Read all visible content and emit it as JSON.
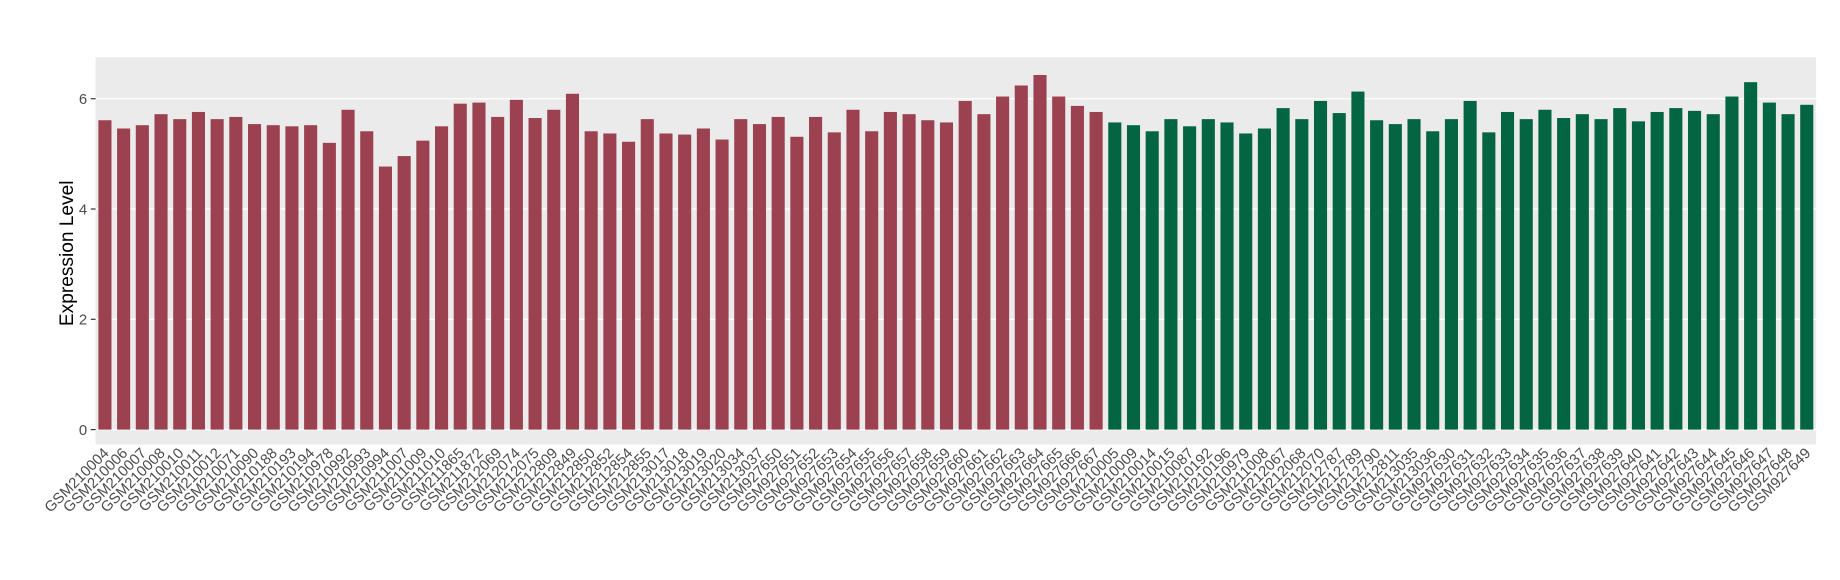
{
  "chart_data": {
    "type": "bar",
    "y_label": "Expression Level",
    "categories": [
      "GSM210004",
      "GSM210006",
      "GSM210007",
      "GSM210008",
      "GSM210010",
      "GSM210011",
      "GSM210012",
      "GSM210071",
      "GSM210090",
      "GSM210188",
      "GSM210193",
      "GSM210194",
      "GSM210978",
      "GSM210992",
      "GSM210993",
      "GSM210994",
      "GSM211007",
      "GSM211009",
      "GSM211010",
      "GSM211865",
      "GSM211872",
      "GSM212069",
      "GSM212074",
      "GSM212075",
      "GSM212809",
      "GSM212849",
      "GSM212850",
      "GSM212852",
      "GSM212854",
      "GSM212855",
      "GSM213017",
      "GSM213018",
      "GSM213019",
      "GSM213020",
      "GSM213034",
      "GSM213037",
      "GSM927650",
      "GSM927651",
      "GSM927652",
      "GSM927653",
      "GSM927654",
      "GSM927655",
      "GSM927656",
      "GSM927657",
      "GSM927658",
      "GSM927659",
      "GSM927660",
      "GSM927661",
      "GSM927662",
      "GSM927663",
      "GSM927664",
      "GSM927665",
      "GSM927666",
      "GSM927667",
      "GSM210005",
      "GSM210009",
      "GSM210014",
      "GSM210015",
      "GSM210087",
      "GSM210192",
      "GSM210196",
      "GSM210979",
      "GSM211008",
      "GSM212067",
      "GSM212068",
      "GSM212070",
      "GSM212787",
      "GSM212789",
      "GSM212790",
      "GSM212811",
      "GSM213035",
      "GSM213036",
      "GSM927630",
      "GSM927631",
      "GSM927632",
      "GSM927633",
      "GSM927634",
      "GSM927635",
      "GSM927636",
      "GSM927637",
      "GSM927638",
      "GSM927639",
      "GSM927640",
      "GSM927641",
      "GSM927642",
      "GSM927643",
      "GSM927644",
      "GSM927645",
      "GSM927646",
      "GSM927647",
      "GSM927648",
      "GSM927649"
    ],
    "values": [
      5.61,
      5.46,
      5.52,
      5.72,
      5.63,
      5.76,
      5.63,
      5.67,
      5.54,
      5.52,
      5.5,
      5.52,
      5.2,
      5.8,
      5.41,
      4.77,
      4.96,
      5.24,
      5.5,
      5.91,
      5.93,
      5.67,
      5.98,
      5.65,
      5.8,
      6.09,
      5.41,
      5.37,
      5.22,
      5.63,
      5.37,
      5.35,
      5.46,
      5.26,
      5.63,
      5.54,
      5.67,
      5.31,
      5.67,
      5.39,
      5.8,
      5.41,
      5.76,
      5.72,
      5.61,
      5.57,
      5.96,
      5.72,
      6.04,
      6.24,
      6.43,
      6.04,
      5.87,
      5.76,
      5.57,
      5.52,
      5.41,
      5.63,
      5.5,
      5.63,
      5.57,
      5.37,
      5.46,
      5.83,
      5.63,
      5.96,
      5.74,
      6.13,
      5.61,
      5.54,
      5.63,
      5.41,
      5.63,
      5.96,
      5.39,
      5.76,
      5.63,
      5.8,
      5.65,
      5.72,
      5.63,
      5.83,
      5.59,
      5.76,
      5.83,
      5.78,
      5.72,
      6.04,
      6.3,
      5.93,
      5.72,
      5.89
    ],
    "colors": [
      "#9b4150",
      "#9b4150",
      "#9b4150",
      "#9b4150",
      "#9b4150",
      "#9b4150",
      "#9b4150",
      "#9b4150",
      "#9b4150",
      "#9b4150",
      "#9b4150",
      "#9b4150",
      "#9b4150",
      "#9b4150",
      "#9b4150",
      "#9b4150",
      "#9b4150",
      "#9b4150",
      "#9b4150",
      "#9b4150",
      "#9b4150",
      "#9b4150",
      "#9b4150",
      "#9b4150",
      "#9b4150",
      "#9b4150",
      "#9b4150",
      "#9b4150",
      "#9b4150",
      "#9b4150",
      "#9b4150",
      "#9b4150",
      "#9b4150",
      "#9b4150",
      "#9b4150",
      "#9b4150",
      "#9b4150",
      "#9b4150",
      "#9b4150",
      "#9b4150",
      "#9b4150",
      "#9b4150",
      "#9b4150",
      "#9b4150",
      "#9b4150",
      "#9b4150",
      "#9b4150",
      "#9b4150",
      "#9b4150",
      "#9b4150",
      "#9b4150",
      "#9b4150",
      "#9b4150",
      "#9b4150",
      "#036541",
      "#036541",
      "#036541",
      "#036541",
      "#036541",
      "#036541",
      "#036541",
      "#036541",
      "#036541",
      "#036541",
      "#036541",
      "#036541",
      "#036541",
      "#036541",
      "#036541",
      "#036541",
      "#036541",
      "#036541",
      "#036541",
      "#036541",
      "#036541",
      "#036541",
      "#036541",
      "#036541",
      "#036541",
      "#036541",
      "#036541",
      "#036541",
      "#036541",
      "#036541",
      "#036541",
      "#036541",
      "#036541",
      "#036541",
      "#036541",
      "#036541",
      "#036541",
      "#036541"
    ],
    "ylim": [
      -0.27,
      6.75
    ],
    "yticks": [
      0,
      2,
      4,
      6
    ],
    "grid": true
  }
}
